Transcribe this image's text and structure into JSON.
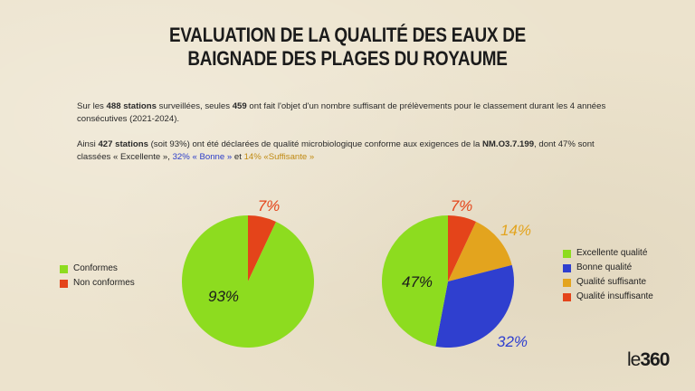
{
  "title_line1": "EVALUATION DE LA QUALITÉ DES EAUX DE",
  "title_line2": "BAIGNADE DES PLAGES DU ROYAUME",
  "p1": {
    "t1": "Sur les ",
    "b1": "488 stations",
    "t2": " surveillées, seules ",
    "b2": "459",
    "t3": " ont fait l'objet d'un nombre suffisant de prélèvements pour le classement durant les 4 années consécutives (2021-2024)."
  },
  "p2": {
    "t1": "Ainsi ",
    "b1": "427 stations",
    "t2": " (soit 93%) ont été déclarées de qualité microbiologique conforme aux exigences de la ",
    "b2": "NM.O3.7.199",
    "t3": ", dont 47% sont classées « Excellente », ",
    "blue": "32% « Bonne »",
    "t4": " et ",
    "gold": "14% «Suffisante »"
  },
  "colors": {
    "green": "#8ddc1f",
    "red": "#e4441a",
    "blue": "#2f3fcf",
    "gold": "#e3a41e"
  },
  "chart_data": [
    {
      "type": "pie",
      "slices": [
        {
          "label": "Non conformes",
          "value": 7,
          "text": "7%"
        },
        {
          "label": "Conformes",
          "value": 93,
          "text": "93%"
        }
      ],
      "legend": [
        "Conformes",
        "Non conformes"
      ]
    },
    {
      "type": "pie",
      "slices": [
        {
          "label": "Qualité insuffisante",
          "value": 7,
          "text": "7%"
        },
        {
          "label": "Qualité suffisante",
          "value": 14,
          "text": "14%"
        },
        {
          "label": "Bonne qualité",
          "value": 32,
          "text": "32%"
        },
        {
          "label": "Excellente qualité",
          "value": 47,
          "text": "47%"
        }
      ],
      "legend": [
        "Excellente qualité",
        "Bonne qualité",
        "Qualité suffisante",
        "Qualité insuffisante"
      ]
    }
  ],
  "logo": {
    "prefix": "le",
    "number": "360"
  }
}
